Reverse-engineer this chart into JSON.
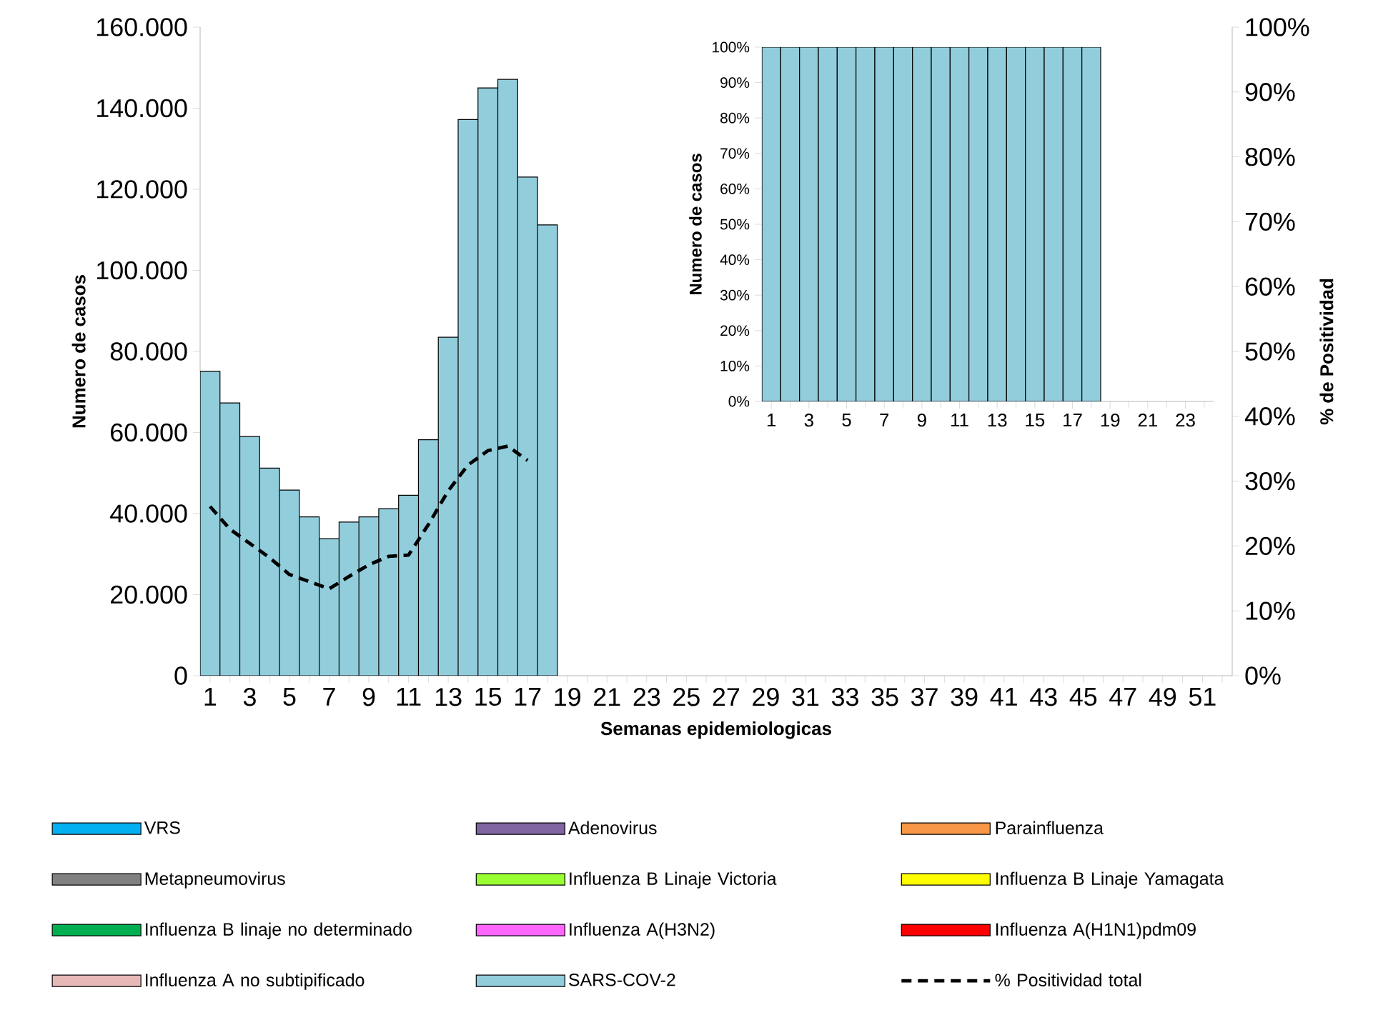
{
  "chart_data": [
    {
      "type": "bar",
      "stacked": true,
      "xlabel": "Semanas epidemiologicas",
      "ylabel": "Numero de casos",
      "y2label": "% de Positividad",
      "legend": "bottom",
      "categories": [
        "1",
        null,
        "3",
        null,
        "5",
        null,
        "7",
        null,
        "9",
        null,
        "11",
        null,
        "13",
        null,
        "15",
        null,
        "17",
        null,
        "19",
        null,
        "21",
        null,
        "23",
        null,
        "25",
        null,
        "27",
        null,
        "29",
        null,
        "31",
        null,
        "33",
        null,
        "35",
        null,
        "37",
        null,
        "39",
        null,
        "41",
        null,
        "43",
        null,
        "45",
        null,
        "47",
        null,
        "49",
        null,
        "51",
        null
      ],
      "ylim": [
        0,
        160000
      ],
      "yticks": [
        0,
        {
          "value": 20000,
          "label": "20.000"
        },
        {
          "value": 40000,
          "label": "40.000"
        },
        {
          "value": 60000,
          "label": "60.000"
        },
        {
          "value": 80000,
          "label": "80.000"
        },
        {
          "value": 100000,
          "label": "100.000"
        },
        {
          "value": 120000,
          "label": "120.000"
        },
        {
          "value": 140000,
          "label": "140.000"
        },
        {
          "value": 160000,
          "label": "160.000"
        }
      ],
      "y2lim": [
        0,
        100
      ],
      "y2ticks": [
        {
          "value": 0,
          "label": "0%"
        },
        {
          "value": 10,
          "label": "10%"
        },
        {
          "value": 20,
          "label": "20%"
        },
        {
          "value": 30,
          "label": "30%"
        },
        {
          "value": 40,
          "label": "40%"
        },
        {
          "value": 50,
          "label": "50%"
        },
        {
          "value": 60,
          "label": "60%"
        },
        {
          "value": 70,
          "label": "70%"
        },
        {
          "value": 80,
          "label": "80%"
        },
        {
          "value": 90,
          "label": "90%"
        },
        {
          "value": 100,
          "label": "100%"
        }
      ],
      "series": [
        {
          "name": "VRS",
          "color": "#00b0f0",
          "values": [
            0,
            0,
            0,
            0,
            0,
            0,
            0,
            0,
            0,
            0,
            0,
            0,
            0,
            0,
            0,
            0,
            0,
            0,
            null,
            null,
            null,
            null,
            null,
            null,
            null,
            null,
            null,
            null,
            null,
            null,
            null,
            null,
            null,
            null,
            null,
            null,
            null,
            null,
            null,
            null,
            null,
            null,
            null,
            null,
            null,
            null,
            null,
            null,
            null,
            null,
            null,
            null
          ]
        },
        {
          "name": "Adenovirus",
          "color": "#8064a2",
          "values": [
            0,
            0,
            0,
            0,
            0,
            0,
            0,
            0,
            0,
            0,
            0,
            0,
            0,
            0,
            0,
            0,
            0,
            0,
            null,
            null,
            null,
            null,
            null,
            null,
            null,
            null,
            null,
            null,
            null,
            null,
            null,
            null,
            null,
            null,
            null,
            null,
            null,
            null,
            null,
            null,
            null,
            null,
            null,
            null,
            null,
            null,
            null,
            null,
            null,
            null,
            null,
            null
          ]
        },
        {
          "name": "Parainfluenza",
          "color": "#f79646",
          "values": [
            0,
            0,
            0,
            0,
            0,
            0,
            0,
            0,
            0,
            0,
            0,
            0,
            0,
            0,
            0,
            0,
            0,
            0,
            null,
            null,
            null,
            null,
            null,
            null,
            null,
            null,
            null,
            null,
            null,
            null,
            null,
            null,
            null,
            null,
            null,
            null,
            null,
            null,
            null,
            null,
            null,
            null,
            null,
            null,
            null,
            null,
            null,
            null,
            null,
            null,
            null,
            null
          ]
        },
        {
          "name": "Metapneumovirus",
          "color": "#808080",
          "values": [
            0,
            0,
            0,
            0,
            0,
            0,
            0,
            0,
            0,
            0,
            0,
            0,
            0,
            0,
            0,
            0,
            0,
            0,
            null,
            null,
            null,
            null,
            null,
            null,
            null,
            null,
            null,
            null,
            null,
            null,
            null,
            null,
            null,
            null,
            null,
            null,
            null,
            null,
            null,
            null,
            null,
            null,
            null,
            null,
            null,
            null,
            null,
            null,
            null,
            null,
            null,
            null
          ]
        },
        {
          "name": "Influenza B Linaje Victoria",
          "color": "#99ff33",
          "values": [
            0,
            0,
            0,
            0,
            0,
            0,
            0,
            0,
            0,
            0,
            0,
            0,
            0,
            0,
            0,
            0,
            0,
            0,
            null,
            null,
            null,
            null,
            null,
            null,
            null,
            null,
            null,
            null,
            null,
            null,
            null,
            null,
            null,
            null,
            null,
            null,
            null,
            null,
            null,
            null,
            null,
            null,
            null,
            null,
            null,
            null,
            null,
            null,
            null,
            null,
            null,
            null
          ]
        },
        {
          "name": "Influenza B Linaje Yamagata",
          "color": "#ffff00",
          "values": [
            0,
            0,
            0,
            0,
            0,
            0,
            0,
            0,
            0,
            0,
            0,
            0,
            0,
            0,
            0,
            0,
            0,
            0,
            null,
            null,
            null,
            null,
            null,
            null,
            null,
            null,
            null,
            null,
            null,
            null,
            null,
            null,
            null,
            null,
            null,
            null,
            null,
            null,
            null,
            null,
            null,
            null,
            null,
            null,
            null,
            null,
            null,
            null,
            null,
            null,
            null,
            null
          ]
        },
        {
          "name": "Influenza B linaje no determinado",
          "color": "#00b050",
          "values": [
            0,
            0,
            0,
            0,
            0,
            0,
            0,
            0,
            0,
            0,
            0,
            0,
            0,
            0,
            0,
            0,
            0,
            0,
            null,
            null,
            null,
            null,
            null,
            null,
            null,
            null,
            null,
            null,
            null,
            null,
            null,
            null,
            null,
            null,
            null,
            null,
            null,
            null,
            null,
            null,
            null,
            null,
            null,
            null,
            null,
            null,
            null,
            null,
            null,
            null,
            null,
            null
          ]
        },
        {
          "name": "Influenza A(H3N2)",
          "color": "#ff66ff",
          "values": [
            0,
            0,
            0,
            0,
            0,
            0,
            0,
            0,
            0,
            0,
            0,
            0,
            0,
            0,
            0,
            0,
            0,
            0,
            null,
            null,
            null,
            null,
            null,
            null,
            null,
            null,
            null,
            null,
            null,
            null,
            null,
            null,
            null,
            null,
            null,
            null,
            null,
            null,
            null,
            null,
            null,
            null,
            null,
            null,
            null,
            null,
            null,
            null,
            null,
            null,
            null,
            null
          ]
        },
        {
          "name": "Influenza A(H1N1)pdm09",
          "color": "#ff0000",
          "values": [
            0,
            0,
            0,
            0,
            0,
            0,
            0,
            0,
            0,
            0,
            0,
            0,
            0,
            0,
            0,
            0,
            0,
            0,
            null,
            null,
            null,
            null,
            null,
            null,
            null,
            null,
            null,
            null,
            null,
            null,
            null,
            null,
            null,
            null,
            null,
            null,
            null,
            null,
            null,
            null,
            null,
            null,
            null,
            null,
            null,
            null,
            null,
            null,
            null,
            null,
            null,
            null
          ]
        },
        {
          "name": "Influenza A no subtipificado",
          "color": "#e6b9b8",
          "values": [
            0,
            0,
            0,
            0,
            0,
            0,
            0,
            0,
            0,
            0,
            0,
            0,
            0,
            0,
            0,
            0,
            0,
            0,
            null,
            null,
            null,
            null,
            null,
            null,
            null,
            null,
            null,
            null,
            null,
            null,
            null,
            null,
            null,
            null,
            null,
            null,
            null,
            null,
            null,
            null,
            null,
            null,
            null,
            null,
            null,
            null,
            null,
            null,
            null,
            null,
            null,
            null
          ]
        },
        {
          "name": "SARS-COV-2",
          "color": "#92cddc",
          "values": [
            75100,
            67300,
            59000,
            51200,
            45800,
            39200,
            33800,
            37900,
            39200,
            41200,
            44500,
            58200,
            83500,
            137200,
            145000,
            147100,
            123000,
            111200,
            null,
            null,
            null,
            null,
            null,
            null,
            null,
            null,
            null,
            null,
            null,
            null,
            null,
            null,
            null,
            null,
            null,
            null,
            null,
            null,
            null,
            null,
            null,
            null,
            null,
            null,
            null,
            null,
            null,
            null,
            null,
            null,
            null,
            null
          ]
        },
        {
          "name": "% Positividad total",
          "type": "line",
          "axis": "y2",
          "color": "#000000",
          "line_style": "dashed",
          "marker": "none",
          "values": [
            26.1,
            22.6,
            20.4,
            18.2,
            15.6,
            14.5,
            13.4,
            15.3,
            17.1,
            18.4,
            18.6,
            23.3,
            28.5,
            32.5,
            34.7,
            35.4,
            33.2,
            null,
            null,
            null,
            null,
            null,
            null,
            null,
            null,
            null,
            null,
            null,
            null,
            null,
            null,
            null,
            null,
            null,
            null,
            null,
            null,
            null,
            null,
            null,
            null,
            null,
            null,
            null,
            null,
            null,
            null,
            null,
            null,
            null,
            null,
            null
          ]
        }
      ]
    },
    {
      "type": "bar",
      "ylabel": "Numero de casos",
      "categories": [
        "1",
        null,
        "3",
        null,
        "5",
        null,
        "7",
        null,
        "9",
        null,
        "11",
        null,
        "13",
        null,
        "15",
        null,
        "17",
        null,
        "19",
        null,
        "21",
        null,
        "23",
        null
      ],
      "ylim": [
        0,
        100
      ],
      "yticks": [
        {
          "value": 0,
          "label": "0%"
        },
        {
          "value": 10,
          "label": "10%"
        },
        {
          "value": 20,
          "label": "20%"
        },
        {
          "value": 30,
          "label": "30%"
        },
        {
          "value": 40,
          "label": "40%"
        },
        {
          "value": 50,
          "label": "50%"
        },
        {
          "value": 60,
          "label": "60%"
        },
        {
          "value": 70,
          "label": "70%"
        },
        {
          "value": 80,
          "label": "80%"
        },
        {
          "value": 90,
          "label": "90%"
        },
        {
          "value": 100,
          "label": "100%"
        }
      ],
      "series": [
        {
          "color": "#92cddc",
          "values": [
            100,
            100,
            100,
            100,
            100,
            100,
            100,
            100,
            100,
            100,
            100,
            100,
            100,
            100,
            100,
            100,
            100,
            100,
            null,
            null,
            null,
            null,
            null,
            null
          ]
        }
      ]
    }
  ]
}
